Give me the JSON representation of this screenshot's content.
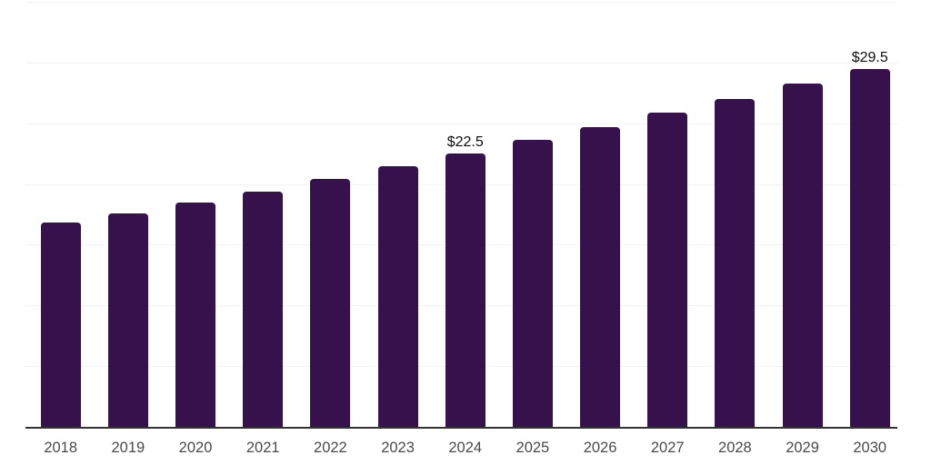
{
  "chart_data": {
    "type": "bar",
    "title": "",
    "xlabel": "",
    "ylabel": "",
    "categories": [
      "2018",
      "2019",
      "2020",
      "2021",
      "2022",
      "2023",
      "2024",
      "2025",
      "2026",
      "2027",
      "2028",
      "2029",
      "2030"
    ],
    "values": [
      16.8,
      17.6,
      18.5,
      19.4,
      20.4,
      21.5,
      22.5,
      23.6,
      24.7,
      25.9,
      27.0,
      28.3,
      29.5
    ],
    "value_labels": {
      "2024": "$22.5",
      "2030": "$29.5"
    },
    "ylim": [
      0,
      35
    ],
    "gridline_step": 5,
    "grid": true,
    "legend": false,
    "y_axis_labels_visible": false,
    "colors": {
      "bar": "#36114B",
      "gridline": "#f3f3f3",
      "axis_line": "#333333",
      "tick_label": "#4a4a4a",
      "value_label": "#0f0f0f",
      "background": "#ffffff"
    }
  }
}
